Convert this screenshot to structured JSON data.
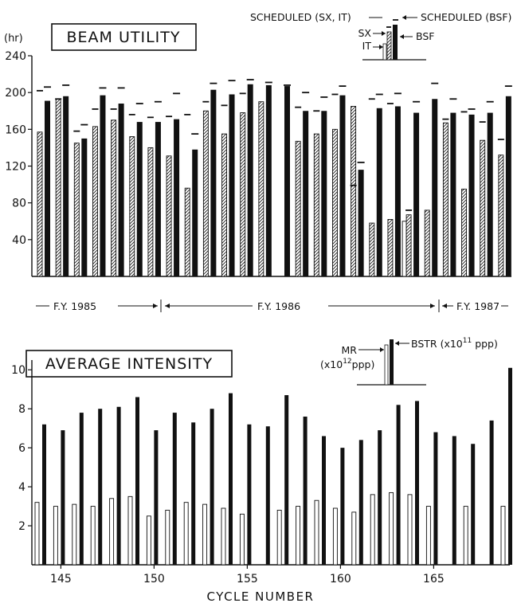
{
  "chart_data": [
    {
      "type": "bar",
      "title": "BEAM UTILITY",
      "ylabel": "(hr)",
      "ylim": [
        0,
        240
      ],
      "yticks": [
        40,
        80,
        120,
        160,
        200,
        240
      ],
      "legend": {
        "scheduled_sx_it": "SCHEDULED (SX, IT)",
        "scheduled_bsf": "SCHEDULED (BSF)",
        "sx": "SX",
        "it": "IT",
        "bsf": "BSF"
      },
      "cycles": [
        144,
        145,
        146,
        147,
        148,
        149,
        150,
        151,
        152,
        153,
        154,
        155,
        156,
        157,
        158,
        159,
        160,
        161,
        162,
        163,
        164,
        165,
        166,
        167,
        168,
        169
      ],
      "series": [
        {
          "name": "IT",
          "values": [
            null,
            null,
            null,
            null,
            null,
            null,
            null,
            null,
            null,
            null,
            null,
            null,
            null,
            null,
            null,
            null,
            null,
            null,
            null,
            null,
            60,
            null,
            null,
            null,
            null,
            null
          ]
        },
        {
          "name": "SX",
          "values": [
            157,
            193,
            145,
            163,
            170,
            152,
            140,
            131,
            96,
            180,
            155,
            178,
            190,
            null,
            147,
            155,
            160,
            185,
            58,
            62,
            67,
            72,
            167,
            95,
            148,
            132
          ]
        },
        {
          "name": "BSF",
          "values": [
            191,
            196,
            150,
            197,
            188,
            168,
            168,
            171,
            138,
            203,
            198,
            209,
            208,
            207,
            180,
            180,
            197,
            116,
            183,
            185,
            178,
            193,
            178,
            176,
            178,
            196
          ]
        },
        {
          "name": "SCHEDULED (SX, IT)",
          "values": [
            202,
            193,
            158,
            182,
            182,
            176,
            173,
            174,
            176,
            190,
            186,
            199,
            null,
            null,
            184,
            180,
            198,
            99,
            193,
            188,
            72,
            null,
            171,
            179,
            168,
            149
          ]
        },
        {
          "name": "SCHEDULED (BSF)",
          "values": [
            206,
            208,
            165,
            205,
            205,
            188,
            190,
            199,
            155,
            210,
            213,
            214,
            211,
            208,
            200,
            195,
            207,
            124,
            198,
            199,
            190,
            210,
            193,
            182,
            190,
            207
          ]
        }
      ],
      "fiscal_years": [
        "F.Y. 1985",
        "F.Y. 1986",
        "F.Y. 1987"
      ]
    },
    {
      "type": "bar",
      "title": "AVERAGE INTENSITY",
      "ylim": [
        0,
        10.5
      ],
      "yticks": [
        2,
        4,
        6,
        8,
        10
      ],
      "legend": {
        "mr": "MR",
        "mr_unit": "(x10",
        "mr_exp": "12",
        "mr_tail": "ppp)",
        "bstr": "BSTR (x10",
        "bstr_exp": "11",
        "bstr_tail": " ppp)"
      },
      "xlabel": "CYCLE NUMBER",
      "xticks": [
        145,
        150,
        155,
        160,
        165
      ],
      "xlim": [
        144,
        170
      ],
      "series": [
        {
          "name": "MR",
          "x": [
            144,
            145,
            146,
            147,
            148,
            149,
            150,
            151,
            152,
            153,
            154,
            155,
            157,
            158,
            159,
            160,
            161,
            162,
            163,
            164,
            165,
            167,
            169
          ],
          "values": [
            3.2,
            3.0,
            3.1,
            3.0,
            3.4,
            3.5,
            2.5,
            2.8,
            3.2,
            3.1,
            2.9,
            2.6,
            2.8,
            3.0,
            3.3,
            2.9,
            2.7,
            3.6,
            3.7,
            3.6,
            3.0,
            3.0,
            3.0
          ]
        },
        {
          "name": "BSTR",
          "x": [
            144,
            145,
            146,
            147,
            148,
            149,
            150,
            151,
            152,
            153,
            154,
            155,
            156,
            157,
            158,
            159,
            160,
            161,
            162,
            163,
            164,
            165,
            166,
            167,
            168,
            169
          ],
          "values": [
            7.2,
            6.9,
            7.8,
            8.0,
            8.1,
            8.6,
            6.9,
            7.8,
            7.3,
            8.0,
            8.8,
            7.2,
            7.1,
            8.7,
            7.6,
            6.6,
            6.0,
            6.4,
            6.9,
            8.2,
            8.4,
            6.8,
            6.6,
            6.2,
            7.4,
            10.1
          ]
        }
      ]
    }
  ]
}
